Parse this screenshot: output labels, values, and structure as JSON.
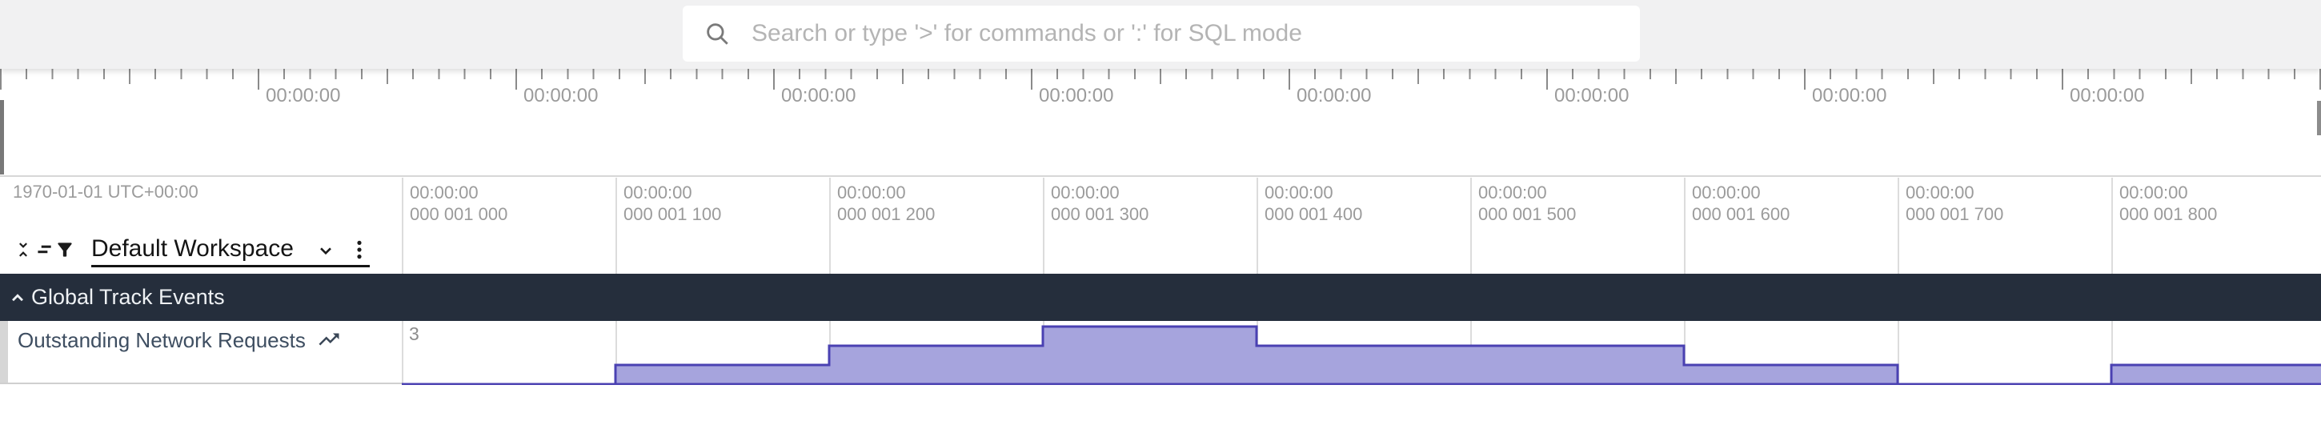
{
  "topbar": {
    "search_placeholder": "Search or type '>' for commands or ':' for SQL mode"
  },
  "overview": {
    "ruler_labels": [
      "00:00:00",
      "00:00:00",
      "00:00:00",
      "00:00:00",
      "00:00:00",
      "00:00:00",
      "00:00:00",
      "00:00:00"
    ]
  },
  "timeline_header": {
    "date_label": "1970-01-01 UTC+00:00",
    "columns": [
      {
        "time": "00:00:00",
        "sub": "000 001 000"
      },
      {
        "time": "00:00:00",
        "sub": "000 001 100"
      },
      {
        "time": "00:00:00",
        "sub": "000 001 200"
      },
      {
        "time": "00:00:00",
        "sub": "000 001 300"
      },
      {
        "time": "00:00:00",
        "sub": "000 001 400"
      },
      {
        "time": "00:00:00",
        "sub": "000 001 500"
      },
      {
        "time": "00:00:00",
        "sub": "000 001 600"
      },
      {
        "time": "00:00:00",
        "sub": "000 001 700"
      },
      {
        "time": "00:00:00",
        "sub": "000 001 800"
      }
    ]
  },
  "workspace_bar": {
    "label": "Default Workspace",
    "icons": [
      "collapse-all-icon",
      "sort-tracks-icon",
      "filter-icon",
      "chevron-down-icon",
      "kebab-menu-icon"
    ]
  },
  "group_header": {
    "label": "Global Track Events",
    "collapse_icon": "chevron-up-icon"
  },
  "track": {
    "title": "Outstanding Network Requests",
    "icon": "trending-up-icon",
    "y_max_label": "3"
  },
  "chart_data": {
    "type": "area",
    "subtype": "step-after counter track",
    "title": "Outstanding Network Requests",
    "x_ticks": [
      "00:00:00.000 001 000",
      "00:00:00.000 001 100",
      "00:00:00.000 001 200",
      "00:00:00.000 001 300",
      "00:00:00.000 001 400",
      "00:00:00.000 001 500",
      "00:00:00.000 001 600",
      "00:00:00.000 001 700",
      "00:00:00.000 001 800"
    ],
    "x_ns_offsets": [
      1000,
      1100,
      1200,
      1300,
      1400,
      1500,
      1600,
      1700,
      1800
    ],
    "values": [
      0,
      1,
      2,
      3,
      2,
      2,
      1,
      0,
      1
    ],
    "note": "value holds until next step; final value 1 extends to right edge of viewport",
    "ylim": [
      0,
      3
    ],
    "y_max_label": "3",
    "fill_color": "#a6a4dd",
    "line_color": "#4a41b2",
    "grid": true,
    "legend": "none"
  }
}
